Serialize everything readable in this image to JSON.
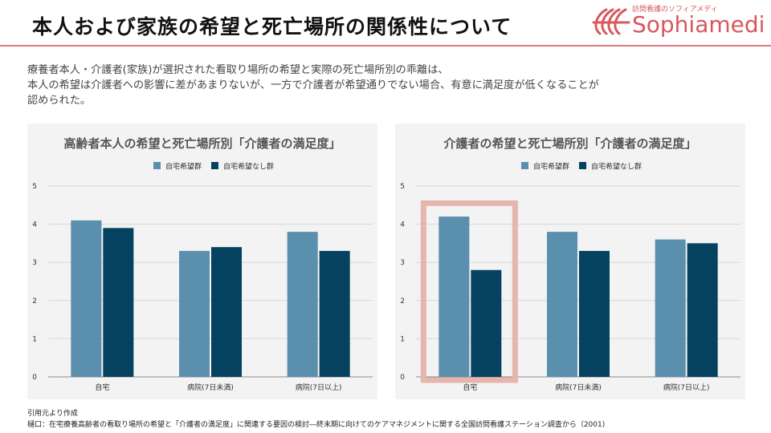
{
  "header": {
    "title": "本人および家族の希望と死亡場所の関係性について",
    "logo_sub": "訪問看護のソフィアメディ",
    "logo_text": "Sophiamedi"
  },
  "description": [
    "療養者本人・介護者(家族)が選択された看取り場所の希望と実際の死亡場所別の乖離は、",
    "本人の希望は介護者への影響に差があまりないが、一方で介護者が希望通りでない場合、有意に満足度が低くなることが",
    "認められた。"
  ],
  "colors": {
    "series1": "#5a8fae",
    "series2": "#044260",
    "highlight": "#e6b5ae",
    "rule": "#e07a7f"
  },
  "chart_data": [
    {
      "type": "bar",
      "title": "高齢者本人の希望と死亡場所別「介護者の満足度」",
      "categories": [
        "自宅",
        "病院(7日未満)",
        "病院(7日以上)"
      ],
      "series": [
        {
          "name": "自宅希望群",
          "values": [
            4.1,
            3.3,
            3.8
          ]
        },
        {
          "name": "自宅希望なし群",
          "values": [
            3.9,
            3.4,
            3.3
          ]
        }
      ],
      "ylim": [
        0,
        5
      ],
      "yticks": [
        "0",
        "1",
        "2",
        "3",
        "4",
        "5"
      ],
      "grid": true,
      "legend": "top-center"
    },
    {
      "type": "bar",
      "title": "介護者の希望と死亡場所別「介護者の満足度」",
      "categories": [
        "自宅",
        "病院(7日未満)",
        "病院(7日以上)"
      ],
      "series": [
        {
          "name": "自宅希望群",
          "values": [
            4.2,
            3.8,
            3.6
          ]
        },
        {
          "name": "自宅希望なし群",
          "values": [
            2.8,
            3.3,
            3.5
          ]
        }
      ],
      "ylim": [
        0,
        5
      ],
      "yticks": [
        "0",
        "1",
        "2",
        "3",
        "4",
        "5"
      ],
      "grid": true,
      "legend": "top-center",
      "highlight_category": "自宅"
    }
  ],
  "footer": {
    "note": "引用元より作成",
    "source": "樋口：在宅療養高齢者の看取り場所の希望と「介護者の満足度」に関連する要因の検討―終末期に向けてのケアマネジメントに関する全国訪問看護ステーション調査から（2001)"
  }
}
